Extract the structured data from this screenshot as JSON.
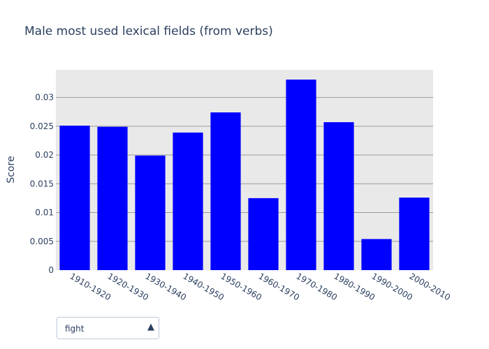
{
  "chart_data": {
    "type": "bar",
    "title": "Male most used lexical fields (from verbs)",
    "xlabel": "",
    "ylabel": "Score",
    "categories": [
      "1910-1920",
      "1920-1930",
      "1930-1940",
      "1940-1950",
      "1950-1960",
      "1960-1970",
      "1970-1980",
      "1980-1990",
      "1990-2000",
      "2000-2010"
    ],
    "values": [
      0.0251,
      0.0249,
      0.0199,
      0.0239,
      0.0274,
      0.0125,
      0.0331,
      0.0257,
      0.0054,
      0.0126
    ],
    "ylim": [
      0,
      0.0348
    ],
    "yticks": [
      0,
      0.005,
      0.01,
      0.015,
      0.02,
      0.025,
      0.03
    ],
    "ytick_labels": [
      "0",
      "0.005",
      "0.01",
      "0.015",
      "0.02",
      "0.025",
      "0.03"
    ],
    "bar_color": "#0000ff",
    "plot_bg": "#e9e9e9",
    "grid": true,
    "legend": "none"
  },
  "dropdown": {
    "selected": "fight",
    "arrow_icon": "triangle-up-icon"
  }
}
